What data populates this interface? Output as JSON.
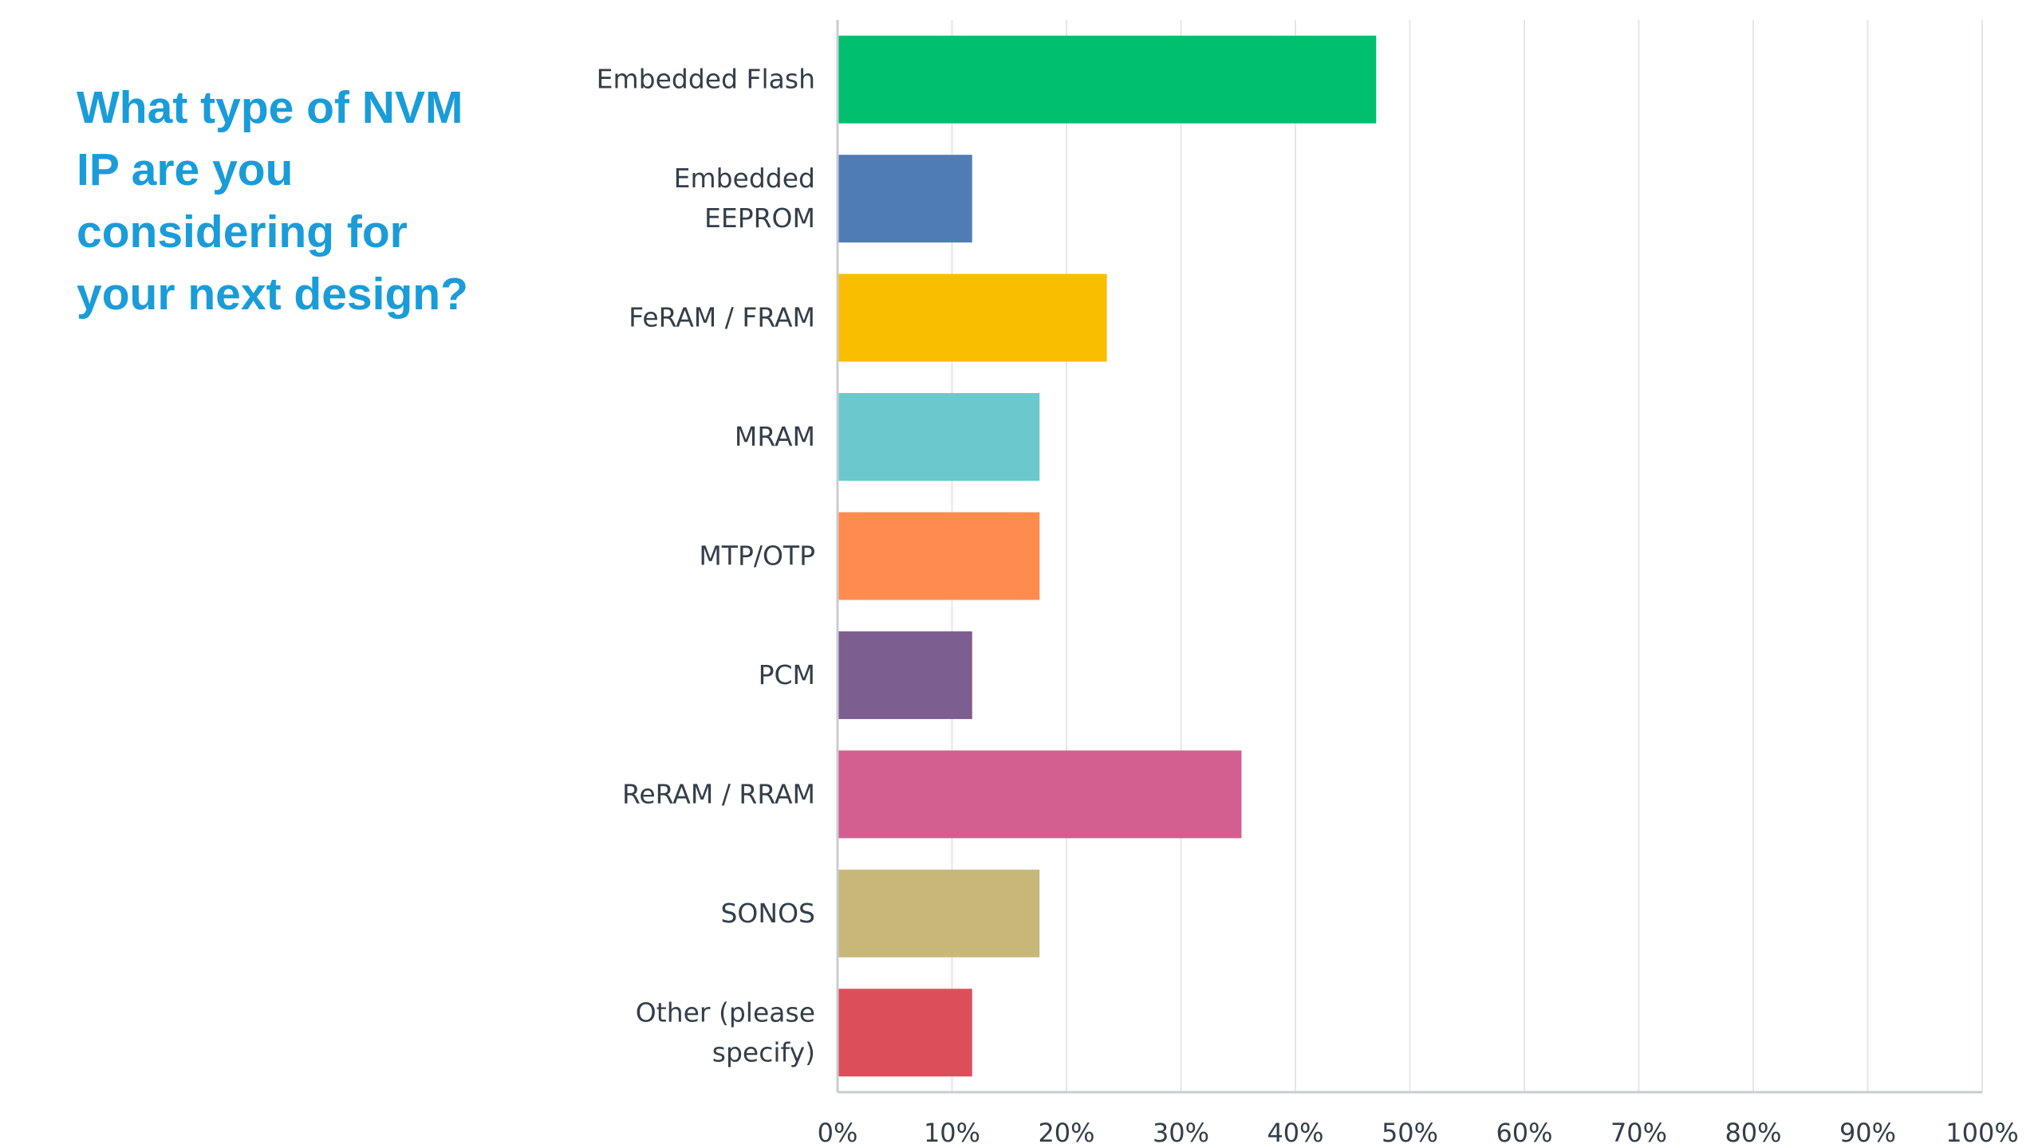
{
  "question": "What type of NVM IP are you considering for your next design?",
  "chart_data": {
    "type": "bar",
    "orientation": "horizontal",
    "categories": [
      [
        "Embedded Flash"
      ],
      [
        "Embedded",
        "EEPROM"
      ],
      [
        "FeRAM / FRAM"
      ],
      [
        "MRAM"
      ],
      [
        "MTP/OTP"
      ],
      [
        "PCM"
      ],
      [
        "ReRAM / RRAM"
      ],
      [
        "SONOS"
      ],
      [
        "Other (please",
        "specify)"
      ]
    ],
    "values": [
      47.06,
      11.76,
      23.53,
      17.65,
      17.65,
      11.76,
      35.29,
      17.65,
      11.76
    ],
    "colors": [
      "#00bf6f",
      "#507cb6",
      "#f9be00",
      "#6bc8cd",
      "#ff8b4f",
      "#7d5e90",
      "#d25f90",
      "#c7b879",
      "#dc4f5a"
    ],
    "x_ticks": [
      "0%",
      "10%",
      "20%",
      "30%",
      "40%",
      "50%",
      "60%",
      "70%",
      "80%",
      "90%",
      "100%"
    ],
    "xlim": [
      0,
      100
    ],
    "grid": true,
    "legend": "none"
  }
}
